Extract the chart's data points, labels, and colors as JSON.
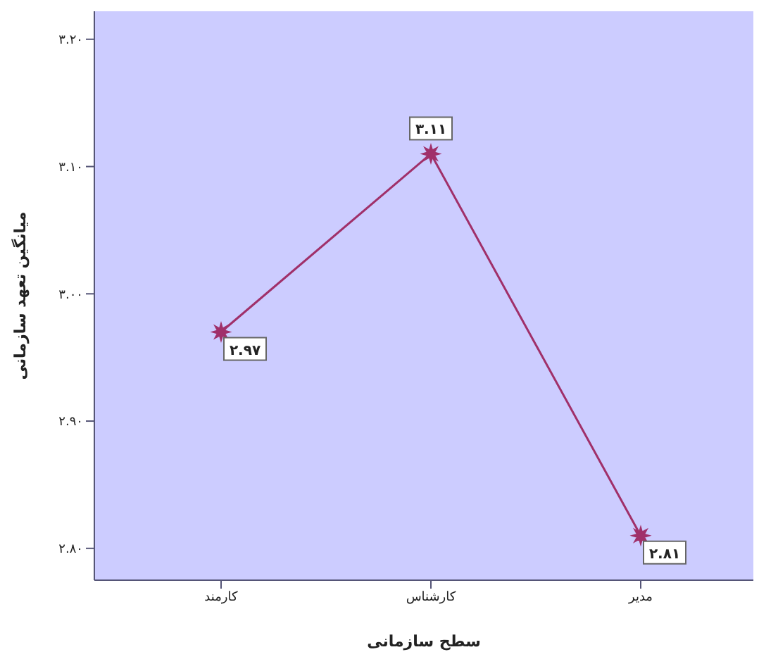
{
  "chart_data": {
    "type": "line",
    "xlabel": "سطح سازمانی",
    "ylabel": "میانگین تعهد سازمانی",
    "categories": [
      "کارمند",
      "کارشناس",
      "مدیر"
    ],
    "series": [
      {
        "color": "#a0306a",
        "values": [
          2.97,
          3.11,
          2.81
        ],
        "value_labels": [
          "۲.۹۷",
          "۳.۱۱",
          "۲.۸۱"
        ]
      }
    ],
    "ylim": [
      2.775,
      3.222
    ],
    "yticks": [
      {
        "value": 2.8,
        "label": "۲.۸۰"
      },
      {
        "value": 2.9,
        "label": "۲.۹۰"
      },
      {
        "value": 3.0,
        "label": "۳.۰۰"
      },
      {
        "value": 3.1,
        "label": "۳.۱۰"
      },
      {
        "value": 3.2,
        "label": "۳.۲۰"
      }
    ],
    "marker": "star",
    "line_style": "solid"
  }
}
